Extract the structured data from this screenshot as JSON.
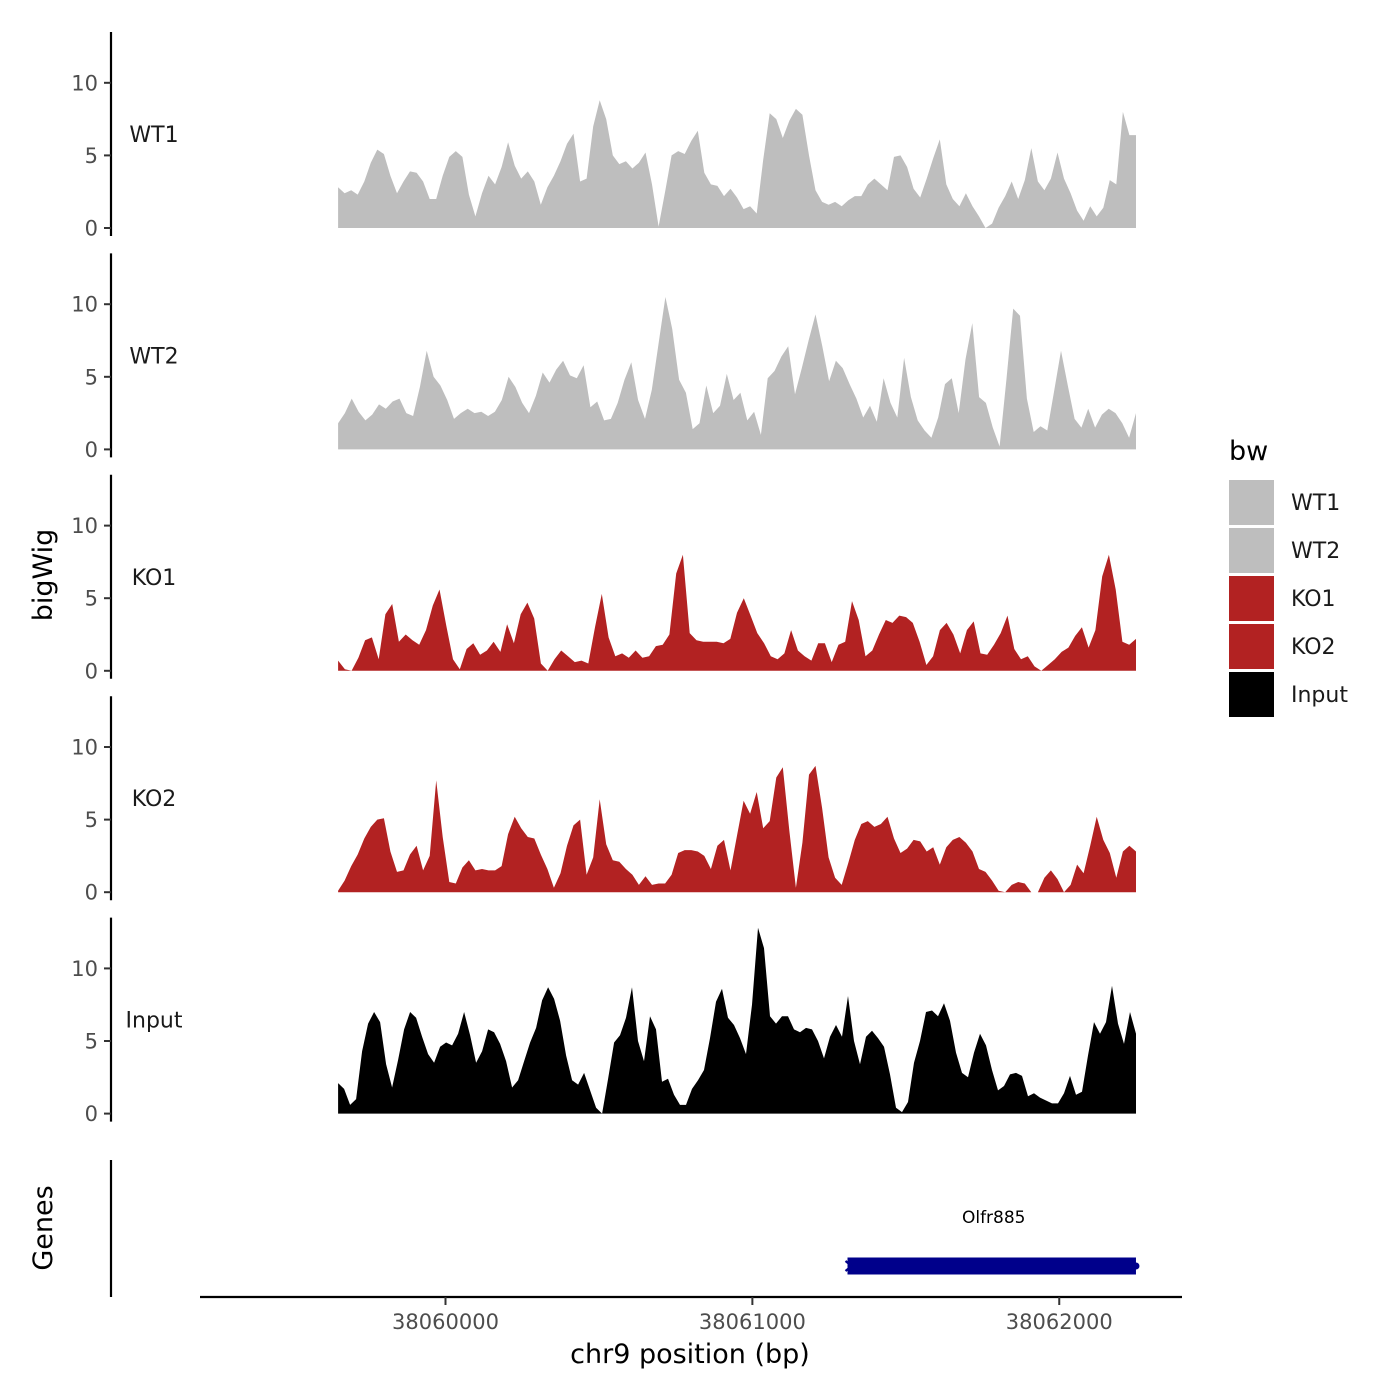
{
  "chart_data": {
    "type": "area",
    "title": "",
    "xlabel": "chr9 position (bp)",
    "ylabel": "bigWig",
    "genes_label": "Genes",
    "xlim": [
      38059200,
      38062400
    ],
    "data_xrange": [
      38059650,
      38062250
    ],
    "ylim": [
      0,
      13.5
    ],
    "y_ticks": [
      0,
      5,
      10
    ],
    "x_ticks": [
      {
        "value": 38060000,
        "label": "38060000"
      },
      {
        "value": 38061000,
        "label": "38061000"
      },
      {
        "value": 38062000,
        "label": "38062000"
      }
    ],
    "legend": {
      "title": "bw",
      "position": "right",
      "entries": [
        {
          "name": "WT1",
          "color": "#bebebe"
        },
        {
          "name": "WT2",
          "color": "#bebebe"
        },
        {
          "name": "KO1",
          "color": "#b22222"
        },
        {
          "name": "KO2",
          "color": "#b22222"
        },
        {
          "name": "Input",
          "color": "#000000"
        }
      ]
    },
    "series": [
      {
        "name": "WT1",
        "color": "#bebebe",
        "values": [
          2.8,
          2.4,
          2.6,
          2.3,
          3.2,
          4.5,
          5.4,
          5.1,
          3.6,
          2.4,
          3.2,
          3.9,
          3.8,
          3.2,
          2.0,
          2.0,
          3.6,
          4.9,
          5.3,
          4.9,
          2.3,
          0.8,
          2.4,
          3.6,
          3.0,
          4.2,
          5.9,
          4.3,
          3.4,
          3.9,
          3.2,
          1.6,
          2.8,
          3.6,
          4.6,
          5.8,
          6.5,
          3.2,
          3.4,
          7.0,
          8.8,
          7.5,
          5.0,
          4.4,
          4.6,
          4.1,
          4.5,
          5.2,
          3.0,
          0.1,
          2.5,
          5.0,
          5.3,
          5.1,
          6.0,
          6.7,
          3.8,
          3.0,
          2.9,
          2.2,
          2.7,
          2.1,
          1.3,
          1.5,
          1.0,
          4.7,
          7.9,
          7.5,
          6.2,
          7.4,
          8.2,
          7.8,
          5.0,
          2.6,
          1.8,
          1.6,
          1.8,
          1.5,
          1.9,
          2.2,
          2.2,
          3.0,
          3.4,
          3.0,
          2.6,
          4.9,
          5.0,
          4.2,
          2.7,
          2.1,
          3.4,
          4.8,
          6.1,
          3.0,
          2.0,
          1.5,
          2.4,
          1.5,
          0.8,
          0.0,
          0.3,
          1.4,
          2.2,
          3.2,
          2.0,
          3.3,
          5.5,
          3.2,
          2.6,
          3.4,
          5.2,
          3.4,
          2.4,
          1.2,
          0.5,
          1.5,
          0.8,
          1.4,
          3.3,
          3.0,
          8.0,
          6.4,
          6.4
        ]
      },
      {
        "name": "WT2",
        "color": "#bebebe",
        "values": [
          1.8,
          2.5,
          3.5,
          2.6,
          2.0,
          2.4,
          3.1,
          2.8,
          3.3,
          3.5,
          2.5,
          2.3,
          4.3,
          6.8,
          5.0,
          4.4,
          3.4,
          2.1,
          2.5,
          2.8,
          2.5,
          2.6,
          2.3,
          2.6,
          3.4,
          5.0,
          4.3,
          3.2,
          2.5,
          3.7,
          5.3,
          4.6,
          5.5,
          6.1,
          5.1,
          4.9,
          5.8,
          2.9,
          3.3,
          2.0,
          2.1,
          3.2,
          4.8,
          6.0,
          3.4,
          2.1,
          4.1,
          7.3,
          10.5,
          8.3,
          4.8,
          3.9,
          1.4,
          1.8,
          4.4,
          2.5,
          3.0,
          5.2,
          3.4,
          3.9,
          2.0,
          2.6,
          1.0,
          4.9,
          5.4,
          6.4,
          7.1,
          3.8,
          5.6,
          7.5,
          9.3,
          7.1,
          4.7,
          6.1,
          5.6,
          4.5,
          3.5,
          2.2,
          3.0,
          1.9,
          4.9,
          3.2,
          2.2,
          6.3,
          3.6,
          2.0,
          1.3,
          0.8,
          2.2,
          4.5,
          4.9,
          2.5,
          6.2,
          8.7,
          3.6,
          3.2,
          1.5,
          0.2,
          4.8,
          9.7,
          9.2,
          3.5,
          1.2,
          1.6,
          1.3,
          4.0,
          6.8,
          4.4,
          2.1,
          1.5,
          2.8,
          1.5,
          2.4,
          2.8,
          2.5,
          1.8,
          0.8,
          2.5
        ]
      },
      {
        "name": "KO1",
        "color": "#b22222",
        "values": [
          0.7,
          0.1,
          0.0,
          0.9,
          2.1,
          2.3,
          0.8,
          3.9,
          4.6,
          2.0,
          2.5,
          2.1,
          1.8,
          2.8,
          4.5,
          5.6,
          3.1,
          0.8,
          0.1,
          1.5,
          1.9,
          1.1,
          1.4,
          2.0,
          1.3,
          3.2,
          1.9,
          3.9,
          4.7,
          3.6,
          0.5,
          0.0,
          0.8,
          1.4,
          1.0,
          0.6,
          0.7,
          0.5,
          3.0,
          5.3,
          2.3,
          1.0,
          1.2,
          0.9,
          1.4,
          0.9,
          1.0,
          1.7,
          1.8,
          2.5,
          6.7,
          8.0,
          2.6,
          2.1,
          2.0,
          2.0,
          2.0,
          1.9,
          2.2,
          4.0,
          5.0,
          3.8,
          2.6,
          1.9,
          1.0,
          0.8,
          1.2,
          2.8,
          1.4,
          1.0,
          0.7,
          1.9,
          1.9,
          0.6,
          1.8,
          2.0,
          4.8,
          3.5,
          1.0,
          1.4,
          2.5,
          3.5,
          3.3,
          3.8,
          3.7,
          3.3,
          2.0,
          0.4,
          1.0,
          2.8,
          3.3,
          2.5,
          1.2,
          2.8,
          3.4,
          1.2,
          1.1,
          1.8,
          2.6,
          3.8,
          1.5,
          0.8,
          1.0,
          0.3,
          0.0,
          0.4,
          0.8,
          1.3,
          1.6,
          2.4,
          3.0,
          1.6,
          2.8,
          6.5,
          8.0,
          5.6,
          2.0,
          1.8,
          2.2
        ]
      },
      {
        "name": "KO2",
        "color": "#b22222",
        "values": [
          0.1,
          0.8,
          1.8,
          2.6,
          3.7,
          4.5,
          5.0,
          5.1,
          2.8,
          1.4,
          1.5,
          2.6,
          3.2,
          1.5,
          2.5,
          7.7,
          3.8,
          0.7,
          0.6,
          1.7,
          2.2,
          1.5,
          1.6,
          1.5,
          1.5,
          1.8,
          4.0,
          5.2,
          4.4,
          3.8,
          3.7,
          2.6,
          1.6,
          0.3,
          1.3,
          3.2,
          4.6,
          5.0,
          1.2,
          2.4,
          6.4,
          3.3,
          2.2,
          2.1,
          1.6,
          1.2,
          0.5,
          1.1,
          0.5,
          0.6,
          0.6,
          1.2,
          2.7,
          2.9,
          2.9,
          2.8,
          2.5,
          1.6,
          3.2,
          3.6,
          1.5,
          3.9,
          6.3,
          5.4,
          6.9,
          4.4,
          4.9,
          7.9,
          8.6,
          4.2,
          0.3,
          3.4,
          8.1,
          8.7,
          5.8,
          2.4,
          1.0,
          0.5,
          2.0,
          3.6,
          4.7,
          4.9,
          4.5,
          4.7,
          5.2,
          3.7,
          2.7,
          3.0,
          3.6,
          3.5,
          2.8,
          3.1,
          1.9,
          3.1,
          3.6,
          3.8,
          3.4,
          2.8,
          1.6,
          1.4,
          0.8,
          0.1,
          0.0,
          0.5,
          0.7,
          0.6,
          0.0,
          0.0,
          1.0,
          1.5,
          0.9,
          0.0,
          0.5,
          1.9,
          1.3,
          3.2,
          5.2,
          3.6,
          2.7,
          1.0,
          2.8,
          3.2,
          2.8
        ]
      },
      {
        "name": "Input",
        "color": "#000000",
        "values": [
          2.1,
          1.7,
          0.6,
          1.0,
          4.3,
          6.2,
          7.0,
          6.3,
          3.4,
          1.8,
          3.7,
          5.8,
          7.0,
          6.6,
          5.3,
          4.1,
          3.5,
          4.6,
          4.9,
          4.7,
          5.5,
          7.0,
          5.4,
          3.5,
          4.3,
          5.8,
          5.6,
          4.8,
          3.6,
          1.8,
          2.3,
          3.6,
          4.9,
          5.9,
          7.8,
          8.7,
          7.9,
          6.4,
          4.0,
          2.3,
          2.0,
          2.8,
          1.6,
          0.4,
          0.0,
          2.4,
          4.9,
          5.4,
          6.6,
          8.7,
          5.0,
          3.6,
          6.7,
          5.8,
          2.2,
          2.4,
          1.3,
          0.6,
          0.6,
          1.7,
          2.3,
          3.0,
          5.2,
          7.7,
          8.6,
          6.6,
          6.1,
          5.2,
          4.1,
          7.5,
          12.8,
          11.4,
          6.7,
          6.2,
          6.7,
          6.7,
          5.8,
          5.6,
          5.9,
          5.8,
          5.0,
          3.8,
          5.3,
          6.1,
          5.3,
          8.1,
          5.0,
          3.4,
          5.3,
          5.7,
          5.2,
          4.6,
          2.7,
          0.4,
          0.1,
          0.8,
          3.5,
          5.0,
          7.0,
          7.1,
          6.7,
          7.6,
          6.4,
          4.2,
          2.8,
          2.5,
          4.2,
          5.5,
          4.7,
          3.0,
          1.6,
          1.9,
          2.7,
          2.8,
          2.6,
          1.2,
          1.4,
          1.1,
          0.9,
          0.7,
          0.7,
          1.4,
          2.6,
          1.3,
          1.5,
          4.0,
          6.3,
          5.5,
          6.3,
          8.8,
          6.2,
          4.8,
          7.0,
          5.5
        ]
      }
    ],
    "genes": [
      {
        "name": "Olfr885",
        "start": 38061310,
        "end": 38062250,
        "strand": "-",
        "color": "#00008b"
      }
    ]
  }
}
